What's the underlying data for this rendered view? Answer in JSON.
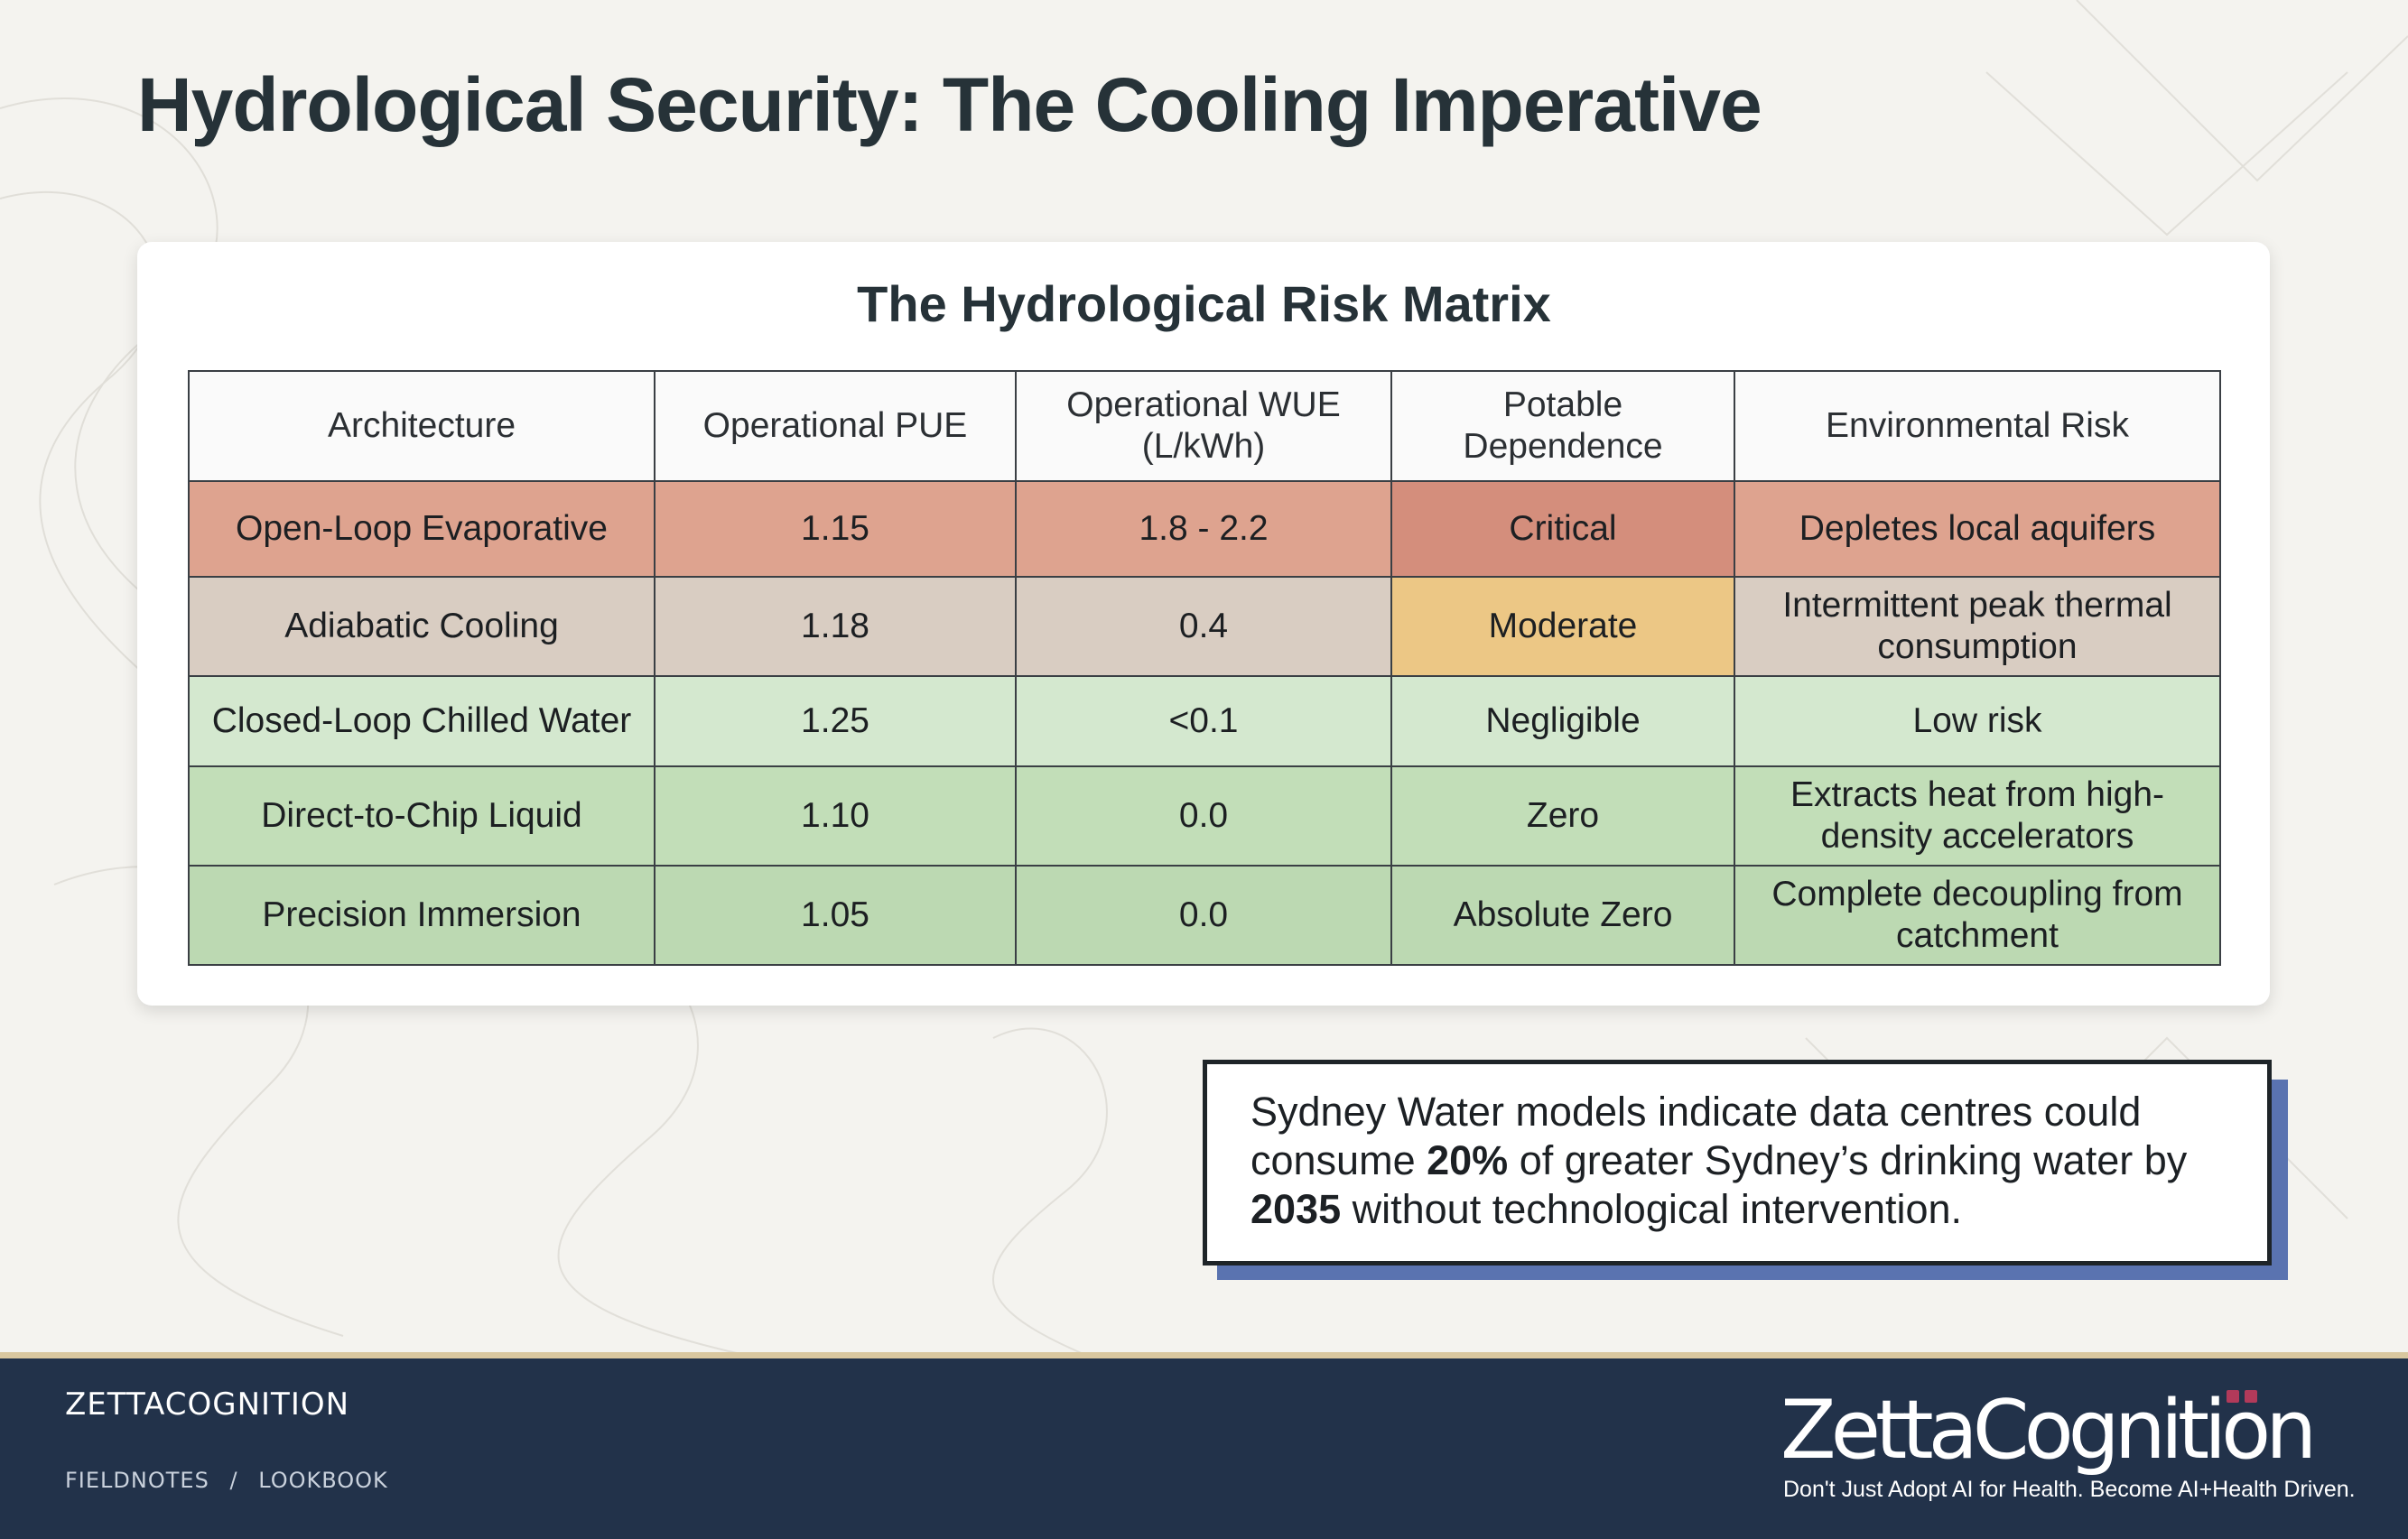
{
  "slide": {
    "title": "Hydrological Security: The Cooling Imperative"
  },
  "matrix": {
    "title": "The Hydrological Risk Matrix",
    "headers": [
      "Architecture",
      "Operational PUE",
      "Operational WUE\n(L/kWh)",
      "Potable\nDependence",
      "Environmental Risk"
    ],
    "rows": [
      [
        "Open-Loop Evaporative",
        "1.15",
        "1.8 - 2.2",
        "Critical",
        "Depletes local aquifers"
      ],
      [
        "Adiabatic Cooling",
        "1.18",
        "0.4",
        "Moderate",
        "Intermittent peak thermal consumption"
      ],
      [
        "Closed-Loop Chilled Water",
        "1.25",
        "<0.1",
        "Negligible",
        "Low risk"
      ],
      [
        "Direct-to-Chip Liquid",
        "1.10",
        "0.0",
        "Zero",
        "Extracts heat from high-density accelerators"
      ],
      [
        "Precision Immersion",
        "1.05",
        "0.0",
        "Absolute Zero",
        "Complete decoupling from catchment"
      ]
    ],
    "colors": {
      "open_loop": "#dea38f",
      "critical": "#d48e7c",
      "adiabatic": "#d9cdc2",
      "moderate": "#ecc785",
      "closed_loop": "#d4e8cf",
      "direct_to_chip": "#c2deb8",
      "immersion": "#bcd9b2"
    }
  },
  "callout": {
    "text_before": "Sydney Water models indicate data centres could consume ",
    "highlight_1": "20%",
    "text_middle": " of greater Sydney’s drinking water by ",
    "highlight_2": "2035",
    "text_after": " without technological intervention.",
    "shadow_color": "#5a73b0"
  },
  "footer": {
    "brand": "ZETTACOGNITION",
    "breadcrumb": [
      "FIELDNOTES",
      "/",
      "LOOKBOOK"
    ],
    "logo_text": "ZettaCognition",
    "tagline": "Don't Just Adopt AI for Health. Become AI+Health Driven.",
    "background": "#22324a",
    "accent": "#d9c79f"
  }
}
